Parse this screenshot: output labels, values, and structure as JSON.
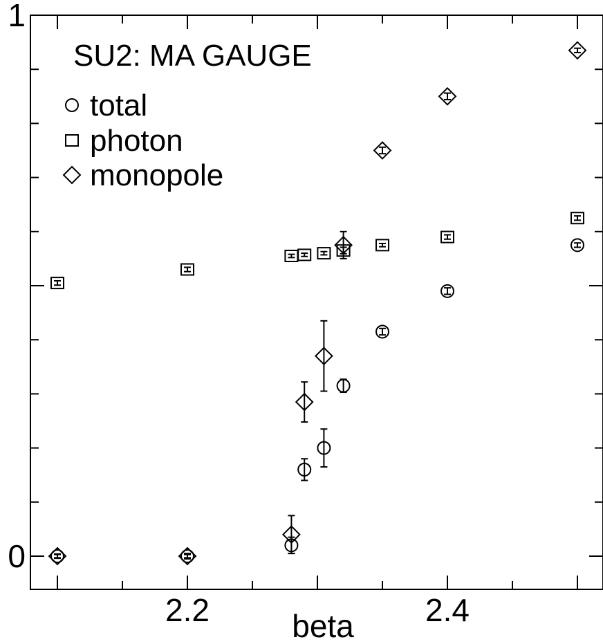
{
  "chart_data": {
    "type": "scatter",
    "title": "SU2: MA GAUGE",
    "xlabel": "beta",
    "ylabel": "",
    "xlim": [
      2.06,
      2.5
    ],
    "ylim": [
      -0.06,
      1.0
    ],
    "x_ticks": [
      {
        "value": 2.2,
        "label": "2.2"
      },
      {
        "value": 2.4,
        "label": "2.4"
      }
    ],
    "y_ticks": [
      {
        "value": 0,
        "label": "0"
      },
      {
        "value": 1,
        "label": "1"
      }
    ],
    "legend": {
      "position": "top-left"
    },
    "grid": false,
    "series": [
      {
        "name": "total",
        "marker": "circle",
        "points": [
          {
            "x": 2.1,
            "y": 0.0,
            "err": 0.003
          },
          {
            "x": 2.2,
            "y": 0.0,
            "err": 0.003
          },
          {
            "x": 2.28,
            "y": 0.02,
            "err": 0.015
          },
          {
            "x": 2.29,
            "y": 0.16,
            "err": 0.02
          },
          {
            "x": 2.305,
            "y": 0.2,
            "err": 0.035
          },
          {
            "x": 2.32,
            "y": 0.315,
            "err": 0.012
          },
          {
            "x": 2.35,
            "y": 0.415,
            "err": 0.006
          },
          {
            "x": 2.4,
            "y": 0.49,
            "err": 0.006
          },
          {
            "x": 2.5,
            "y": 0.575,
            "err": 0.004
          }
        ]
      },
      {
        "name": "photon",
        "marker": "square",
        "points": [
          {
            "x": 2.1,
            "y": 0.505,
            "err": 0.004
          },
          {
            "x": 2.2,
            "y": 0.53,
            "err": 0.004
          },
          {
            "x": 2.28,
            "y": 0.555,
            "err": 0.003
          },
          {
            "x": 2.29,
            "y": 0.557,
            "err": 0.003
          },
          {
            "x": 2.305,
            "y": 0.56,
            "err": 0.003
          },
          {
            "x": 2.32,
            "y": 0.565,
            "err": 0.006
          },
          {
            "x": 2.35,
            "y": 0.575,
            "err": 0.003
          },
          {
            "x": 2.4,
            "y": 0.59,
            "err": 0.004
          },
          {
            "x": 2.5,
            "y": 0.625,
            "err": 0.004
          }
        ]
      },
      {
        "name": "monopole",
        "marker": "diamond",
        "points": [
          {
            "x": 2.1,
            "y": 0.0,
            "err": 0.004
          },
          {
            "x": 2.2,
            "y": 0.0,
            "err": 0.005
          },
          {
            "x": 2.28,
            "y": 0.04,
            "err": 0.035
          },
          {
            "x": 2.29,
            "y": 0.285,
            "err": 0.037
          },
          {
            "x": 2.305,
            "y": 0.37,
            "err": 0.065
          },
          {
            "x": 2.32,
            "y": 0.575,
            "err": 0.025
          },
          {
            "x": 2.35,
            "y": 0.75,
            "err": 0.006
          },
          {
            "x": 2.4,
            "y": 0.85,
            "err": 0.006
          },
          {
            "x": 2.5,
            "y": 0.935,
            "err": 0.004
          }
        ]
      }
    ]
  }
}
